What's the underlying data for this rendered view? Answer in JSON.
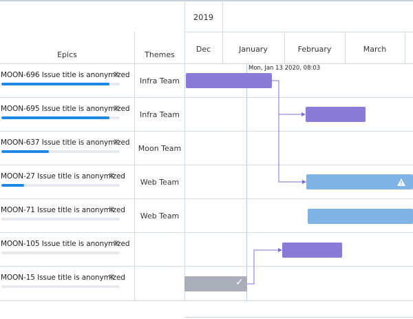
{
  "header": {
    "epics_label": "Epics",
    "themes_label": "Themes",
    "year": "2019",
    "months": [
      "Dec",
      "January",
      "February",
      "March"
    ]
  },
  "tooltip": "Mon, Jan 13 2020, 08:03",
  "rows": [
    {
      "title": "MOON-696 Issue title is anonymized",
      "theme": "Infra Team",
      "progress": 0.91
    },
    {
      "title": "MOON-695 Issue title is anonymized",
      "theme": "Infra Team",
      "progress": 0.91
    },
    {
      "title": "MOON-637 Issue title is anonymized",
      "theme": "Moon Team",
      "progress": 0.4
    },
    {
      "title": "MOON-27 Issue title is anonymized",
      "theme": "Web Team",
      "progress": 0.19
    },
    {
      "title": "MOON-71 Issue title is anonymized",
      "theme": "Web Team",
      "progress": 0.0
    },
    {
      "title": "MOON-105 Issue title is anonymized",
      "theme": "",
      "progress": 0.0
    },
    {
      "title": "MOON-15 Issue title is anonymized",
      "theme": "",
      "progress": 0.0
    }
  ],
  "colors": {
    "in_progress_bar": "#8a7bd8",
    "planned_bar": "#80b3e6",
    "done_bar": "#a9aeb9",
    "progress_fill": "#1e88e5",
    "dependency_line": "#7b6fd6"
  },
  "icons": {
    "remove": "close-icon",
    "warning": "warning-icon",
    "done": "checkmark-icon"
  }
}
